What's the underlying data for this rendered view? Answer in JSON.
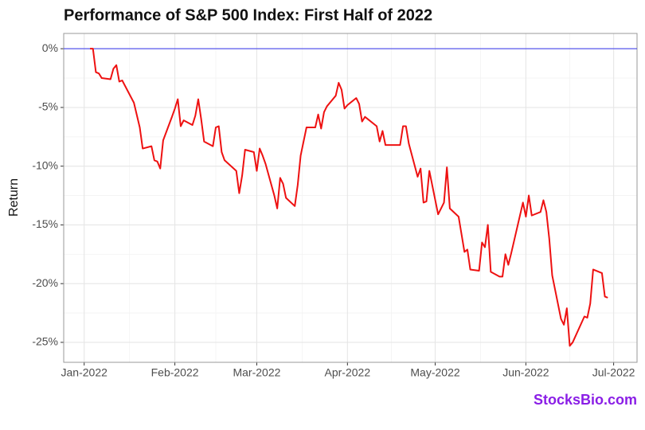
{
  "chart_data": {
    "type": "line",
    "title": "Performance of S&P 500 Index: First Half of 2022",
    "y_label": "Return",
    "watermark": "StocksBio.com",
    "color": "#ee1111",
    "hline": {
      "value": 0,
      "color": "#3333ee"
    },
    "grid": true,
    "xlim": [
      "2021-12-25",
      "2022-07-09"
    ],
    "ylim": [
      -26.7,
      1.3
    ],
    "xticks": [
      {
        "value": "2022-01-01",
        "label": "Jan-2022"
      },
      {
        "value": "2022-02-01",
        "label": "Feb-2022"
      },
      {
        "value": "2022-03-01",
        "label": "Mar-2022"
      },
      {
        "value": "2022-04-01",
        "label": "Apr-2022"
      },
      {
        "value": "2022-05-01",
        "label": "May-2022"
      },
      {
        "value": "2022-06-01",
        "label": "Jun-2022"
      },
      {
        "value": "2022-07-01",
        "label": "Jul-2022"
      }
    ],
    "yticks": [
      {
        "value": 0,
        "label": "0%"
      },
      {
        "value": -5,
        "label": "-5%"
      },
      {
        "value": -10,
        "label": "-10%"
      },
      {
        "value": -15,
        "label": "-15%"
      },
      {
        "value": -20,
        "label": "-20%"
      },
      {
        "value": -25,
        "label": "-25%"
      }
    ],
    "x": [
      "2022-01-03",
      "2022-01-04",
      "2022-01-05",
      "2022-01-06",
      "2022-01-07",
      "2022-01-10",
      "2022-01-11",
      "2022-01-12",
      "2022-01-13",
      "2022-01-14",
      "2022-01-18",
      "2022-01-20",
      "2022-01-21",
      "2022-01-24",
      "2022-01-25",
      "2022-01-26",
      "2022-01-27",
      "2022-01-28",
      "2022-01-31",
      "2022-02-01",
      "2022-02-02",
      "2022-02-03",
      "2022-02-04",
      "2022-02-07",
      "2022-02-08",
      "2022-02-09",
      "2022-02-10",
      "2022-02-11",
      "2022-02-14",
      "2022-02-15",
      "2022-02-16",
      "2022-02-17",
      "2022-02-18",
      "2022-02-22",
      "2022-02-23",
      "2022-02-24",
      "2022-02-25",
      "2022-02-28",
      "2022-03-01",
      "2022-03-02",
      "2022-03-03",
      "2022-03-04",
      "2022-03-07",
      "2022-03-08",
      "2022-03-09",
      "2022-03-10",
      "2022-03-11",
      "2022-03-14",
      "2022-03-15",
      "2022-03-16",
      "2022-03-18",
      "2022-03-21",
      "2022-03-22",
      "2022-03-23",
      "2022-03-24",
      "2022-03-25",
      "2022-03-28",
      "2022-03-29",
      "2022-03-30",
      "2022-03-31",
      "2022-04-01",
      "2022-04-04",
      "2022-04-05",
      "2022-04-06",
      "2022-04-07",
      "2022-04-08",
      "2022-04-11",
      "2022-04-12",
      "2022-04-13",
      "2022-04-14",
      "2022-04-18",
      "2022-04-19",
      "2022-04-20",
      "2022-04-21",
      "2022-04-22",
      "2022-04-25",
      "2022-04-26",
      "2022-04-27",
      "2022-04-28",
      "2022-04-29",
      "2022-05-02",
      "2022-05-03",
      "2022-05-04",
      "2022-05-05",
      "2022-05-06",
      "2022-05-09",
      "2022-05-11",
      "2022-05-12",
      "2022-05-13",
      "2022-05-16",
      "2022-05-17",
      "2022-05-18",
      "2022-05-19",
      "2022-05-20",
      "2022-05-23",
      "2022-05-24",
      "2022-05-25",
      "2022-05-26",
      "2022-05-27",
      "2022-05-31",
      "2022-06-01",
      "2022-06-02",
      "2022-06-03",
      "2022-06-06",
      "2022-06-07",
      "2022-06-08",
      "2022-06-09",
      "2022-06-10",
      "2022-06-13",
      "2022-06-14",
      "2022-06-15",
      "2022-06-16",
      "2022-06-17",
      "2022-06-21",
      "2022-06-22",
      "2022-06-23",
      "2022-06-24",
      "2022-06-27",
      "2022-06-28",
      "2022-06-29"
    ],
    "values": [
      0,
      0,
      -2.0,
      -2.1,
      -2.5,
      -2.6,
      -1.7,
      -1.4,
      -2.8,
      -2.7,
      -4.6,
      -6.7,
      -8.5,
      -8.3,
      -9.5,
      -9.6,
      -10.2,
      -7.8,
      -5.8,
      -5.1,
      -4.3,
      -6.6,
      -6.1,
      -6.5,
      -5.7,
      -4.3,
      -6.0,
      -7.9,
      -8.3,
      -6.7,
      -6.6,
      -8.8,
      -9.5,
      -10.4,
      -12.3,
      -10.8,
      -8.6,
      -8.8,
      -10.4,
      -8.5,
      -9.1,
      -9.8,
      -12.5,
      -13.6,
      -11.0,
      -11.5,
      -12.7,
      -13.4,
      -11.6,
      -9.1,
      -6.7,
      -6.7,
      -5.6,
      -6.8,
      -5.4,
      -4.9,
      -4.0,
      -2.9,
      -3.5,
      -5.1,
      -4.8,
      -4.2,
      -4.7,
      -6.2,
      -5.8,
      -6.0,
      -6.6,
      -7.9,
      -7.0,
      -8.2,
      -8.2,
      -8.2,
      -6.6,
      -6.6,
      -8.1,
      -10.9,
      -10.2,
      -13.1,
      -13.0,
      -10.4,
      -14.1,
      -13.6,
      -13.1,
      -10.1,
      -13.6,
      -14.3,
      -17.3,
      -17.1,
      -18.8,
      -18.9,
      -16.5,
      -16.9,
      -15.0,
      -19.0,
      -19.4,
      -19.4,
      -17.5,
      -18.4,
      -17.4,
      -13.1,
      -14.3,
      -12.5,
      -14.2,
      -13.9,
      -12.9,
      -13.9,
      -16.2,
      -19.3,
      -23.0,
      -23.5,
      -22.1,
      -25.3,
      -25.0,
      -22.8,
      -22.9,
      -21.7,
      -18.8,
      -19.1,
      -21.1,
      -21.2
    ]
  }
}
